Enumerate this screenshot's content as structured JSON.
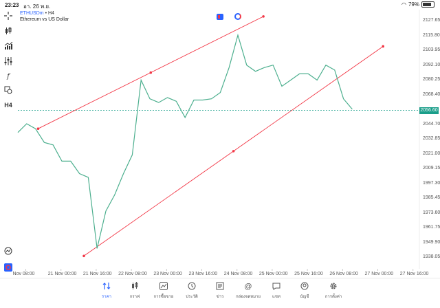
{
  "status_bar": {
    "time": "23:23",
    "date": "อา. 26 พ.ย.",
    "battery": "79%",
    "battery_level": 0.79
  },
  "instrument": {
    "symbol": "ETHUSDm",
    "timeframe": "• H4",
    "description": "Ethereum vs US Dollar"
  },
  "toolbar": [
    "crosshair-icon",
    "candles-icon",
    "indicators-icon",
    "settings-sliders-icon",
    "function-icon",
    "objects-icon",
    "h4-label",
    "alerts-icon",
    "logo-icon"
  ],
  "toolbar_text": {
    "h4": "H4"
  },
  "colors": {
    "line": "#4caf8e",
    "trendline": "#f23645",
    "price_badge": "#1a9e8a",
    "accent": "#2962ff"
  },
  "current_price": "2056.60",
  "tabs": [
    {
      "label": "ราคา",
      "icon": "quotes-arrows-icon",
      "active": true
    },
    {
      "label": "กราฟ",
      "icon": "chart-candles-icon",
      "active": false
    },
    {
      "label": "การซื้อขาย",
      "icon": "trade-chart-icon",
      "active": false
    },
    {
      "label": "ประวัติ",
      "icon": "history-clock-icon",
      "active": false
    },
    {
      "label": "ข่าว",
      "icon": "news-book-icon",
      "active": false
    },
    {
      "label": "กล่องจดหมาย",
      "icon": "mailbox-at-icon",
      "active": false
    },
    {
      "label": "แชท",
      "icon": "chat-bubble-icon",
      "active": false
    },
    {
      "label": "บัญชี",
      "icon": "account-icon",
      "active": false
    },
    {
      "label": "การตั้งค่า",
      "icon": "settings-gear-icon",
      "active": false
    }
  ],
  "chart_data": {
    "type": "line",
    "title": "",
    "xlabel": "",
    "ylabel": "",
    "ylim": [
      1928,
      2136
    ],
    "y_ticks": [
      "2127.65",
      "2115.80",
      "2103.95",
      "2092.10",
      "2080.25",
      "2068.40",
      "2056.60",
      "2044.70",
      "2032.85",
      "2021.00",
      "2009.15",
      "1997.30",
      "1985.45",
      "1973.60",
      "1961.75",
      "1949.90",
      "1938.05"
    ],
    "x_tick_labels": [
      "Nov 08:00",
      "21 Nov 00:00",
      "21 Nov 16:00",
      "22 Nov 08:00",
      "23 Nov 00:00",
      "23 Nov 16:00",
      "24 Nov 08:00",
      "25 Nov 00:00",
      "25 Nov 16:00",
      "26 Nov 08:00",
      "27 Nov 00:00",
      "27 Nov 16:00"
    ],
    "x_tick_index": [
      0.9,
      4.9,
      8.9,
      12.9,
      16.9,
      20.9,
      24.9,
      28.9,
      32.9,
      36.9,
      40.9,
      44.9
    ],
    "series": [
      {
        "values": [
          2038,
          2045,
          2041,
          2030,
          2028,
          2015,
          2015,
          2005,
          2002,
          1945,
          1975,
          1988,
          2005,
          2020,
          2080,
          2065,
          2062,
          2066,
          2063,
          2050,
          2064,
          2064,
          2065,
          2070,
          2090,
          2116,
          2092,
          2087,
          2090,
          2092,
          2075,
          2080,
          2085,
          2085,
          2080,
          2092,
          2088,
          2065,
          2056.6
        ]
      }
    ],
    "trendlines": [
      {
        "points": [
          [
            2.3,
            2041
          ],
          [
            15.1,
            2086
          ],
          [
            27.9,
            2131
          ]
        ]
      },
      {
        "points": [
          [
            7.5,
            1939
          ],
          [
            24.5,
            2023
          ],
          [
            41.5,
            2107
          ]
        ]
      }
    ],
    "current_price_line": 2056.6
  }
}
